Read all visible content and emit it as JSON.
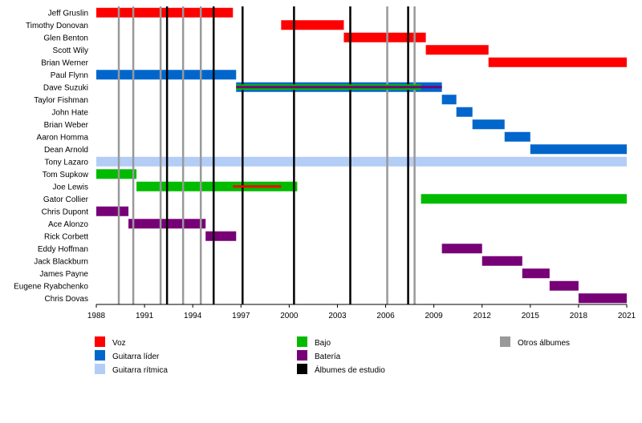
{
  "chart_data": {
    "type": "timeline",
    "title": "",
    "xlim": [
      1988,
      2021
    ],
    "x_ticks": [
      1988,
      1991,
      1994,
      1997,
      2000,
      2003,
      2006,
      2009,
      2012,
      2015,
      2018,
      2021
    ],
    "members": [
      "Jeff Gruslin",
      "Timothy Donovan",
      "Glen Benton",
      "Scott Wily",
      "Brian Werner",
      "Paul Flynn",
      "Dave Suzuki",
      "Taylor Fishman",
      "John Hate",
      "Brian Weber",
      "Aaron Homma",
      "Dean Arnold",
      "Tony Lazaro",
      "Tom Supkow",
      "Joe Lewis",
      "Gator Collier",
      "Chris Dupont",
      "Ace Alonzo",
      "Rick Corbett",
      "Eddy Hoffman",
      "Jack Blackburn",
      "James Payne",
      "Eugene Ryabchenko",
      "Chris Dovas"
    ],
    "roles": [
      {
        "key": "vocals",
        "label": "Voz",
        "color": "#ff0000"
      },
      {
        "key": "lead",
        "label": "Guitarra líder",
        "color": "#0066cc"
      },
      {
        "key": "rhythm",
        "label": "Guitarra rítmica",
        "color": "#b4cdf7"
      },
      {
        "key": "bass",
        "label": "Bajo",
        "color": "#00bb00"
      },
      {
        "key": "drums",
        "label": "Batería",
        "color": "#770077"
      },
      {
        "key": "studio",
        "label": "Álbumes de estudio",
        "color": "#000000"
      },
      {
        "key": "other",
        "label": "Otros álbumes",
        "color": "#999999"
      }
    ],
    "bars": [
      {
        "member": 0,
        "role": "vocals",
        "start": 1988.0,
        "end": 1996.5
      },
      {
        "member": 1,
        "role": "vocals",
        "start": 1999.5,
        "end": 2003.4
      },
      {
        "member": 2,
        "role": "vocals",
        "start": 2003.4,
        "end": 2008.5
      },
      {
        "member": 3,
        "role": "vocals",
        "start": 2008.5,
        "end": 2012.4
      },
      {
        "member": 4,
        "role": "vocals",
        "start": 2012.4,
        "end": 2021.0
      },
      {
        "member": 5,
        "role": "lead",
        "start": 1988.0,
        "end": 1996.7
      },
      {
        "member": 6,
        "role": "lead",
        "start": 1996.7,
        "end": 2009.5
      },
      {
        "member": 7,
        "role": "lead",
        "start": 2009.5,
        "end": 2010.4
      },
      {
        "member": 8,
        "role": "lead",
        "start": 2010.4,
        "end": 2011.4
      },
      {
        "member": 9,
        "role": "lead",
        "start": 2011.4,
        "end": 2013.4
      },
      {
        "member": 10,
        "role": "lead",
        "start": 2013.4,
        "end": 2015.0
      },
      {
        "member": 11,
        "role": "lead",
        "start": 2015.0,
        "end": 2021.0
      },
      {
        "member": 12,
        "role": "rhythm",
        "start": 1988.0,
        "end": 2021.0
      },
      {
        "member": 13,
        "role": "bass",
        "start": 1988.0,
        "end": 1990.5
      },
      {
        "member": 14,
        "role": "bass",
        "start": 1990.5,
        "end": 2000.5
      },
      {
        "member": 15,
        "role": "bass",
        "start": 2008.2,
        "end": 2021.0
      },
      {
        "member": 16,
        "role": "drums",
        "start": 1988.0,
        "end": 1990.0
      },
      {
        "member": 17,
        "role": "drums",
        "start": 1990.0,
        "end": 1994.8
      },
      {
        "member": 18,
        "role": "drums",
        "start": 1994.8,
        "end": 1996.7
      },
      {
        "member": 19,
        "role": "drums",
        "start": 2009.5,
        "end": 2012.0
      },
      {
        "member": 20,
        "role": "drums",
        "start": 2012.0,
        "end": 2014.5
      },
      {
        "member": 21,
        "role": "drums",
        "start": 2014.5,
        "end": 2016.2
      },
      {
        "member": 22,
        "role": "drums",
        "start": 2016.2,
        "end": 2018.0
      },
      {
        "member": 23,
        "role": "drums",
        "start": 2018.0,
        "end": 2021.0
      }
    ],
    "overlays": [
      {
        "member": 6,
        "role": "bass",
        "start": 1996.7,
        "end": 2008.2
      },
      {
        "member": 6,
        "role": "drums",
        "start": 1996.7,
        "end": 2009.5
      },
      {
        "member": 14,
        "role": "vocals",
        "start": 1996.5,
        "end": 1999.5
      }
    ],
    "studio_albums": [
      1992.4,
      1995.3,
      1997.1,
      2000.3,
      2003.8,
      2007.4
    ],
    "other_albums": [
      1989.4,
      1990.3,
      1992.0,
      1993.4,
      1994.5,
      2006.1,
      2007.8
    ]
  }
}
